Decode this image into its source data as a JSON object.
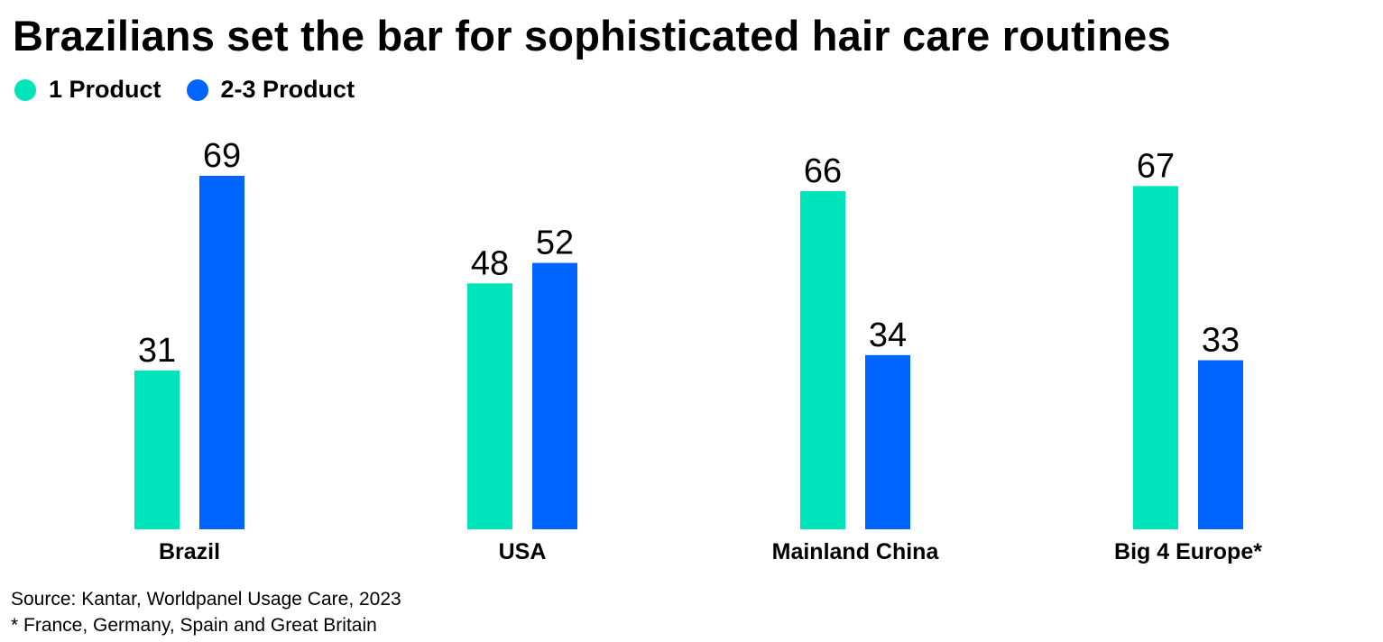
{
  "title": "Brazilians set the bar for sophisticated hair care routines",
  "legend": [
    {
      "label": "1 Product",
      "color": "#00E4BC"
    },
    {
      "label": "2-3 Product",
      "color": "#0064FF"
    }
  ],
  "source": {
    "line1": "Source: Kantar, Worldpanel Usage Care, 2023",
    "line2": "* France, Germany, Spain and Great Britain"
  },
  "chart_data": {
    "type": "bar",
    "title": "Brazilians set the bar for sophisticated hair care routines",
    "categories": [
      "Brazil",
      "USA",
      "Mainland China",
      "Big 4 Europe*"
    ],
    "series": [
      {
        "name": "1 Product",
        "values": [
          31,
          48,
          66,
          67
        ],
        "color": "#00E4BC"
      },
      {
        "name": "2-3 Product",
        "values": [
          69,
          52,
          34,
          33
        ],
        "color": "#0064FF"
      }
    ],
    "ylim": [
      0,
      69
    ],
    "grid": false,
    "legend_position": "top-left",
    "data_labels": true
  }
}
